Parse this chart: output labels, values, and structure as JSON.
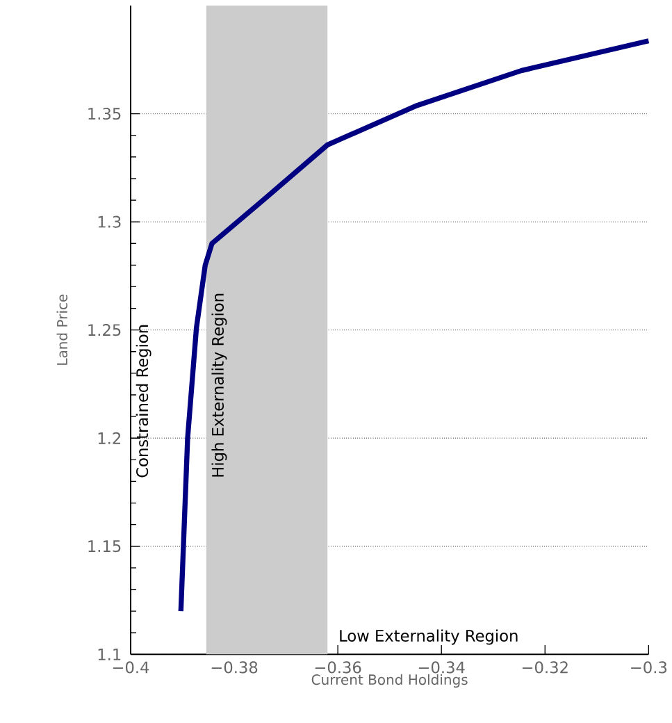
{
  "chart_data": {
    "type": "line",
    "xlabel": "Current Bond Holdings",
    "ylabel": "Land Price",
    "x": [
      -0.3903,
      -0.389,
      -0.3873,
      -0.3856,
      -0.3843,
      -0.3742,
      -0.362,
      -0.3447,
      -0.3246,
      -0.3
    ],
    "series": [
      {
        "color": "#000080",
        "values": [
          1.12,
          1.2,
          1.251,
          1.28,
          1.29,
          1.3105,
          1.3356,
          1.3538,
          1.3699,
          1.3837
        ]
      }
    ],
    "xlim": [
      -0.4,
      -0.3
    ],
    "ylim": [
      1.1,
      1.4
    ],
    "xticks": [
      {
        "value": -0.4,
        "label": "−0.4"
      },
      {
        "value": -0.38,
        "label": "−0.38"
      },
      {
        "value": -0.36,
        "label": "−0.36"
      },
      {
        "value": -0.34,
        "label": "−0.34"
      },
      {
        "value": -0.32,
        "label": "−0.32"
      },
      {
        "value": -0.3,
        "label": "−0.3"
      }
    ],
    "yticks": [
      1.1,
      1.15,
      1.2,
      1.25,
      1.3,
      1.35
    ],
    "grid": "y",
    "line_style": "solid",
    "bands": [
      {
        "axis": "x",
        "from": -0.3854,
        "to": -0.362,
        "label": "High Externality Region",
        "color": "#cccccc"
      }
    ],
    "annotations": [
      "Constrained Region",
      "Low Externality Region"
    ]
  }
}
